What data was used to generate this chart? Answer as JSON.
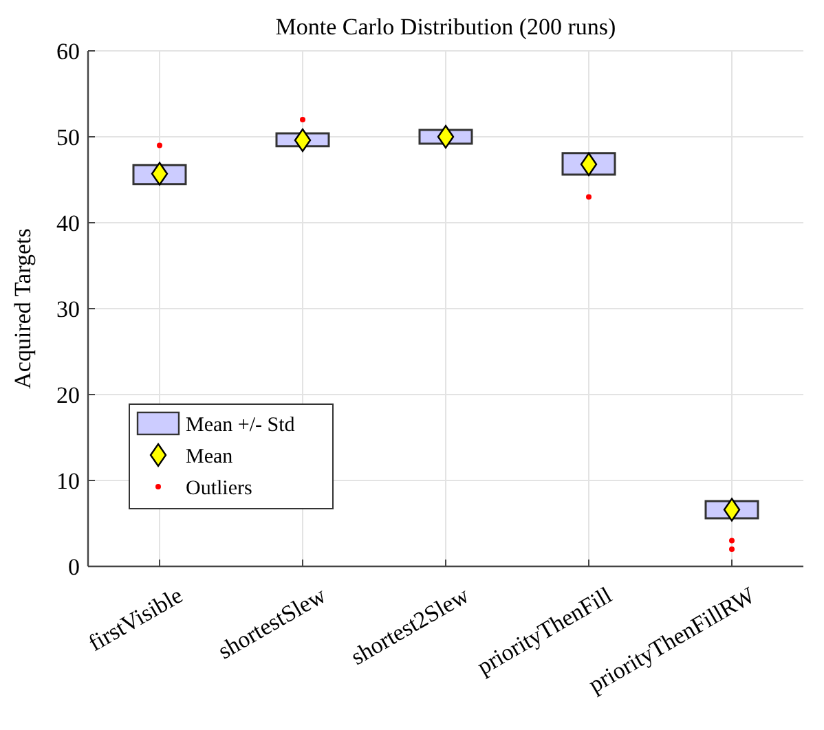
{
  "chart_data": {
    "type": "bar",
    "title": "Monte Carlo Distribution (200 runs)",
    "ylabel": "Acquired Targets",
    "categories": [
      "firstVisible",
      "shortestSlew",
      "shortest2Slew",
      "priorityThenFill",
      "priorityThenFillRW"
    ],
    "series": [
      {
        "name": "Mean +/- Std",
        "color": "#ccccff",
        "base": [
          44.5,
          48.9,
          49.2,
          45.6,
          5.6
        ],
        "values": [
          2.2,
          1.5,
          1.6,
          2.5,
          2.0
        ]
      },
      {
        "name": "Mean",
        "type": "scatter",
        "marker": "diamond",
        "color": "#ffff00",
        "values": [
          45.7,
          49.6,
          50,
          46.8,
          6.6
        ]
      },
      {
        "name": "Outliers",
        "type": "scatter",
        "marker": "circle",
        "color": "#ff0000",
        "x": [
          "firstVisible",
          "shortestSlew",
          "priorityThenFill",
          "priorityThenFillRW",
          "priorityThenFillRW"
        ],
        "values": [
          49,
          52,
          43,
          3,
          2
        ]
      }
    ],
    "ylim": [
      0,
      60
    ],
    "yticks": [
      0,
      10,
      20,
      30,
      40,
      50,
      60
    ],
    "grid": true,
    "legend": "bottom left"
  }
}
